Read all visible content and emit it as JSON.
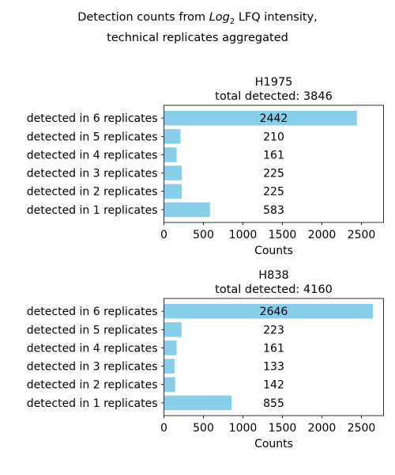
{
  "figure": {
    "suptitle_pre": "Detection counts from ",
    "suptitle_var": "Log",
    "suptitle_sub": "2",
    "suptitle_post": " LFQ intensity,",
    "suptitle_line2": "technical replicates aggregated"
  },
  "chart_data": [
    {
      "type": "bar",
      "orientation": "horizontal",
      "title": "H1975",
      "subtitle": "total detected: 3846",
      "xlabel": "Counts",
      "ylabel": "",
      "xlim": [
        0,
        2780
      ],
      "xticks": [
        0,
        500,
        1000,
        1500,
        2000,
        2500
      ],
      "grid": false,
      "bar_color": "#87ceeb",
      "categories": [
        "detected in 6 replicates",
        "detected in 5 replicates",
        "detected in 4 replicates",
        "detected in 3 replicates",
        "detected in 2 replicates",
        "detected in 1 replicates"
      ],
      "values": [
        2442,
        210,
        161,
        225,
        225,
        583
      ],
      "data_labels": [
        "2442",
        "210",
        "161",
        "225",
        "225",
        "583"
      ]
    },
    {
      "type": "bar",
      "orientation": "horizontal",
      "title": "H838",
      "subtitle": "total detected: 4160",
      "xlabel": "Counts",
      "ylabel": "",
      "xlim": [
        0,
        2780
      ],
      "xticks": [
        0,
        500,
        1000,
        1500,
        2000,
        2500
      ],
      "grid": false,
      "bar_color": "#87ceeb",
      "categories": [
        "detected in 6 replicates",
        "detected in 5 replicates",
        "detected in 4 replicates",
        "detected in 3 replicates",
        "detected in 2 replicates",
        "detected in 1 replicates"
      ],
      "values": [
        2646,
        223,
        161,
        133,
        142,
        855
      ],
      "data_labels": [
        "2646",
        "223",
        "161",
        "133",
        "142",
        "855"
      ]
    }
  ]
}
